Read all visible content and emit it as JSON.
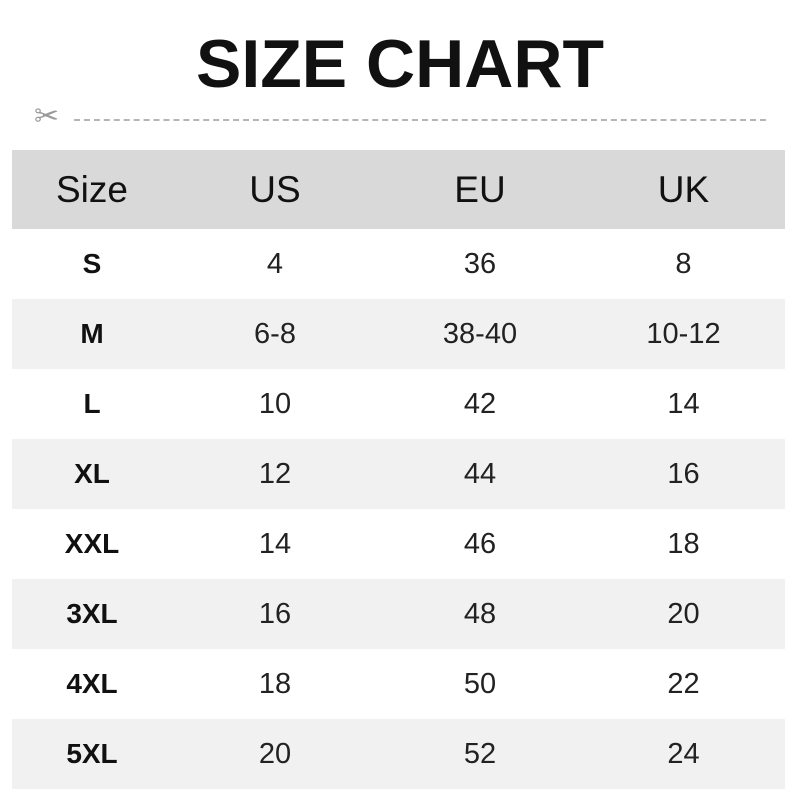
{
  "title": "SIZE CHART",
  "header": [
    "Size",
    "US",
    "EU",
    "UK"
  ],
  "rows": [
    [
      "S",
      "4",
      "36",
      "8"
    ],
    [
      "M",
      "6-8",
      "38-40",
      "10-12"
    ],
    [
      "L",
      "10",
      "42",
      "14"
    ],
    [
      "XL",
      "12",
      "44",
      "16"
    ],
    [
      "XXL",
      "14",
      "46",
      "18"
    ],
    [
      "3XL",
      "16",
      "48",
      "20"
    ],
    [
      "4XL",
      "18",
      "50",
      "22"
    ],
    [
      "5XL",
      "20",
      "52",
      "24"
    ]
  ],
  "colors": {
    "header_bg": "#d9d9d9",
    "alt_row_bg": "#f1f1f1"
  }
}
